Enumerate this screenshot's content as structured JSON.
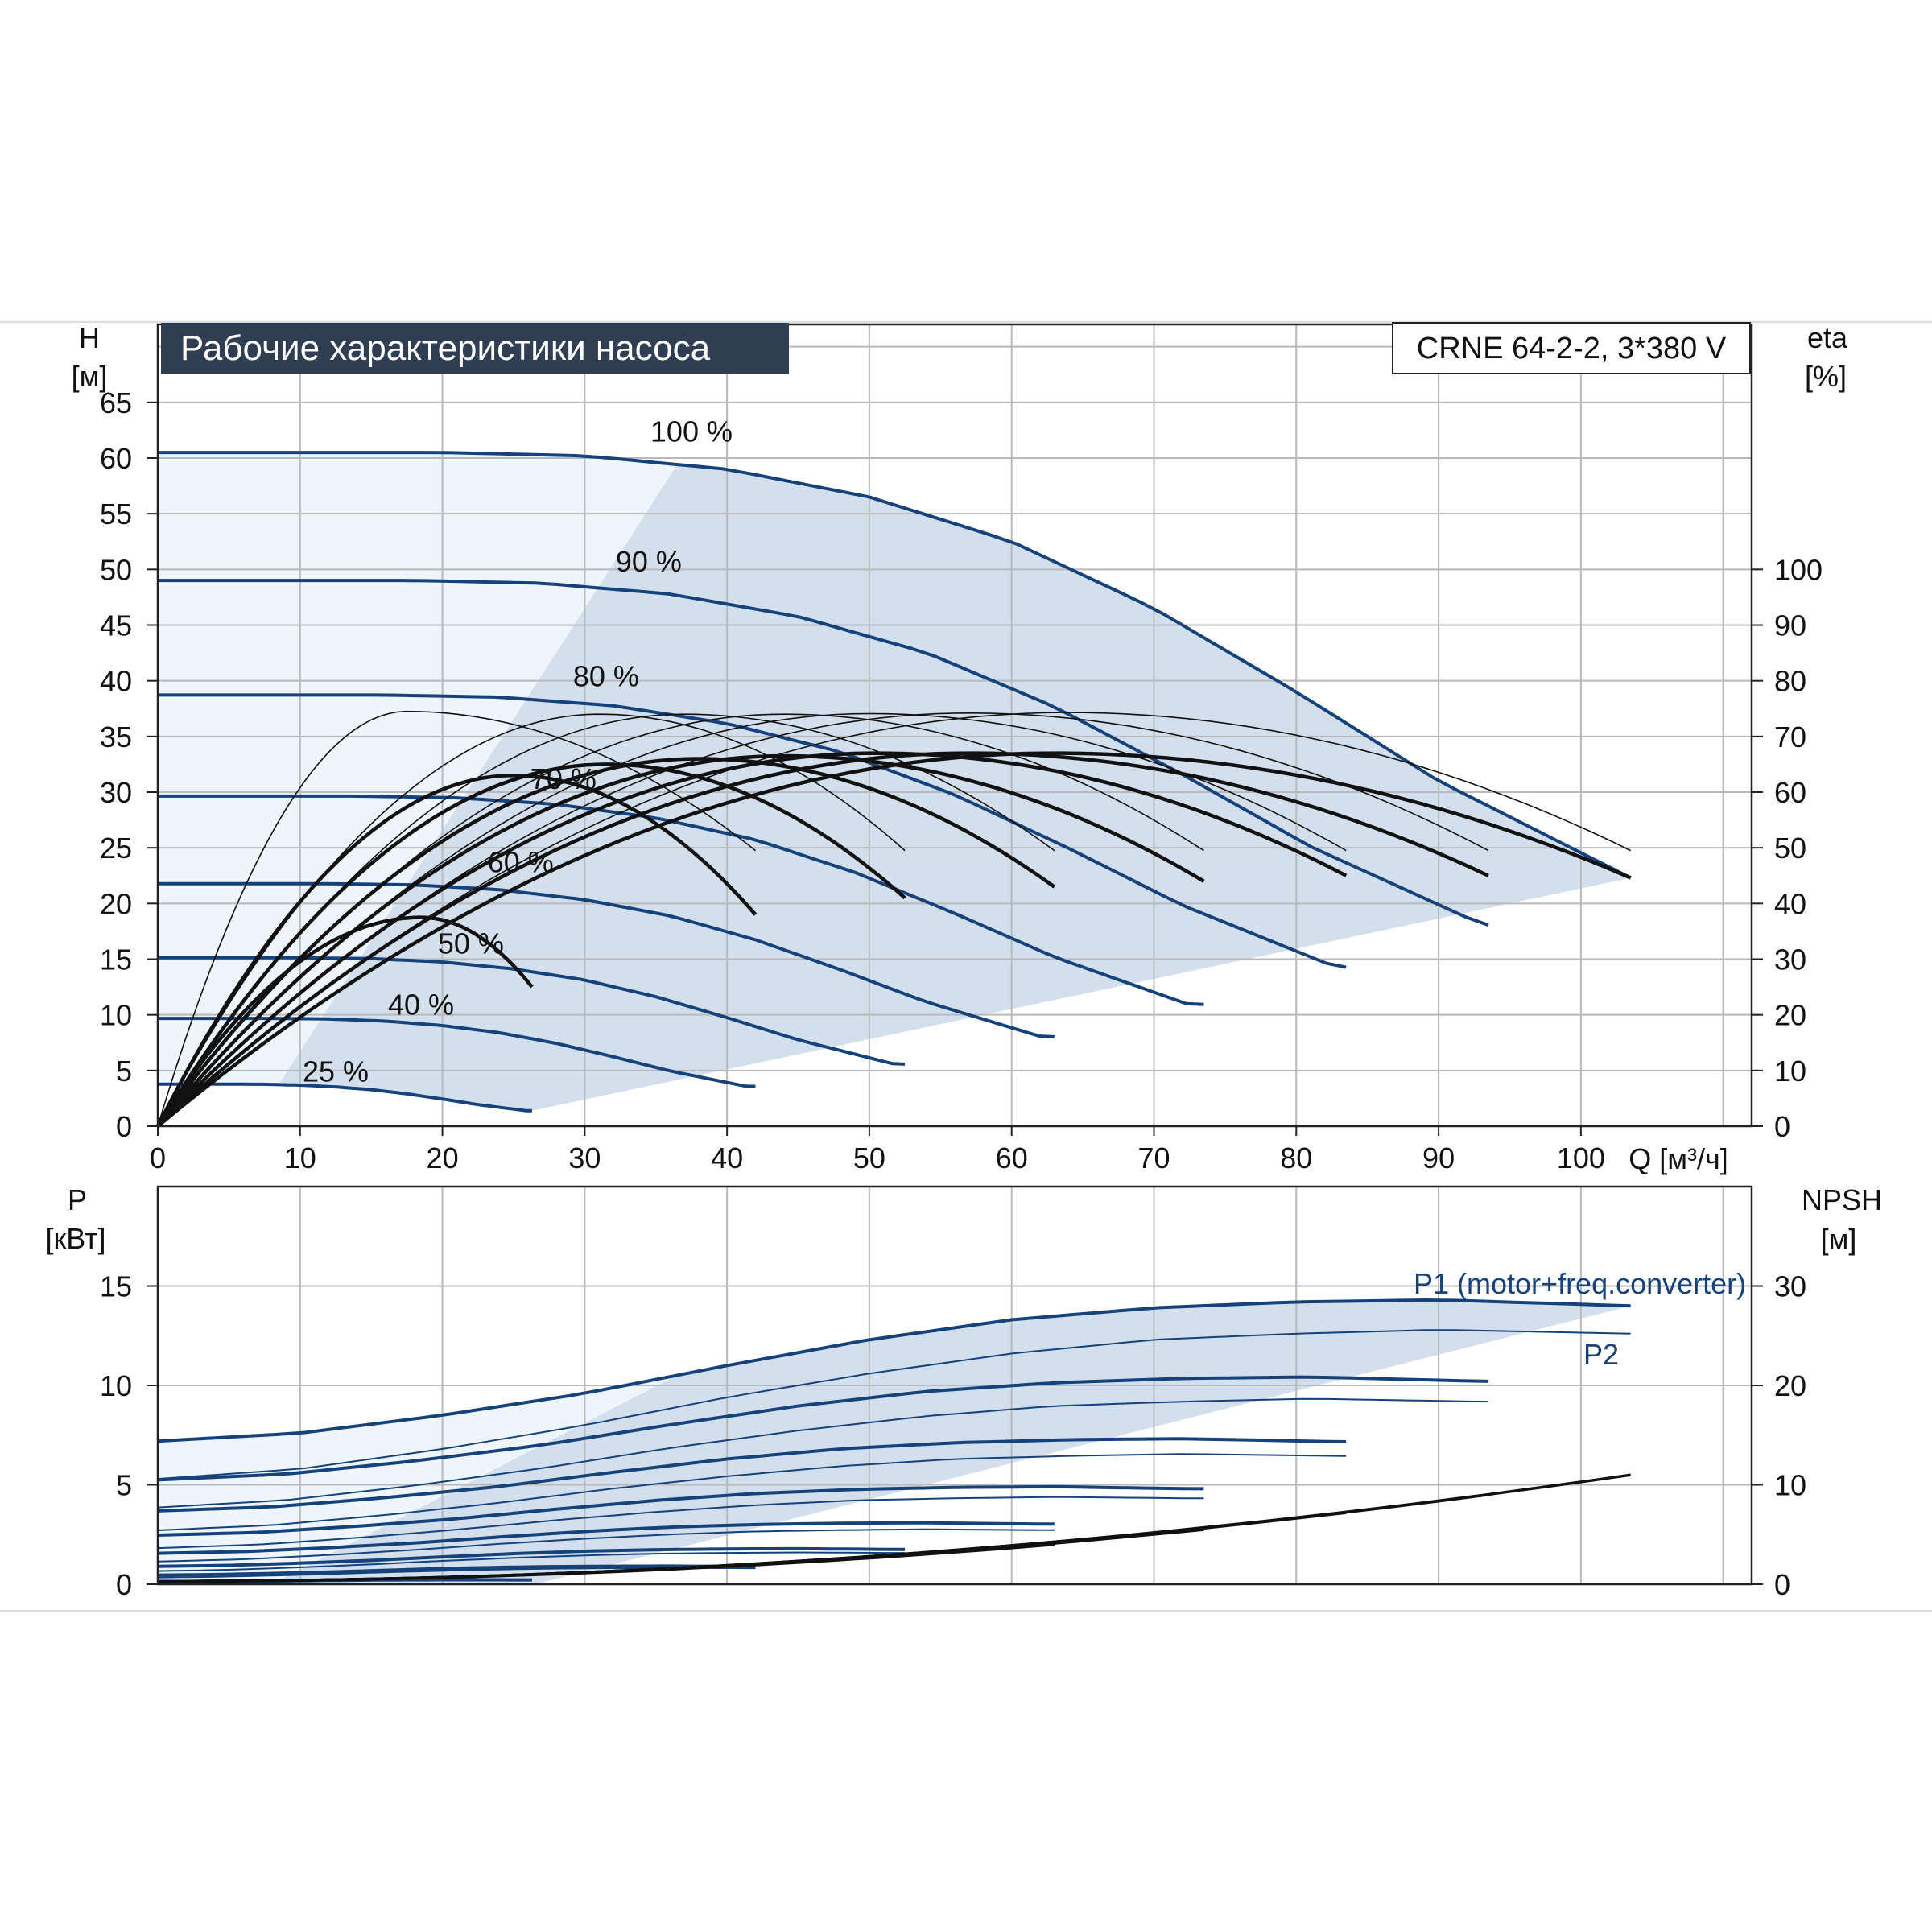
{
  "colors": {
    "accent": "#15427a",
    "title_bg": "#2f3e52",
    "title_text": "#ffffff",
    "shade": "#d3dfec",
    "shade_light": "#eef5fc",
    "grid": "#b9b9b9",
    "eff_curve": "#111111",
    "npsh_curve": "#111111"
  },
  "chart_data": [
    {
      "type": "line",
      "name": "head",
      "title": "Рабочие характеристики насоса",
      "model_label": "CRNE 64-2-2, 3*380 V",
      "xlabel": "Q [м³/ч]",
      "ylabel": "H",
      "ylabel_unit": "[м]",
      "y2label": "eta",
      "y2label_unit": "[%]",
      "xlim": [
        0,
        112
      ],
      "ylim": [
        0,
        72
      ],
      "y2lim": [
        0,
        144
      ],
      "x_ticks": [
        0,
        10,
        20,
        30,
        40,
        50,
        60,
        70,
        80,
        90,
        100
      ],
      "y_ticks": [
        0,
        5,
        10,
        15,
        20,
        25,
        30,
        35,
        40,
        45,
        50,
        55,
        60,
        65
      ],
      "y2_ticks": [
        0,
        10,
        20,
        30,
        40,
        50,
        60,
        70,
        80,
        90,
        100
      ],
      "grid": true,
      "speed_curves": [
        {
          "name": "100 %",
          "speed": 1.0,
          "qmax": 103.5
        },
        {
          "name": "90 %",
          "speed": 0.9,
          "qmax": 93.5
        },
        {
          "name": "80 %",
          "speed": 0.8,
          "qmax": 83.5
        },
        {
          "name": "70 %",
          "speed": 0.7,
          "qmax": 73.5
        },
        {
          "name": "60 %",
          "speed": 0.6,
          "qmax": 63
        },
        {
          "name": "50 %",
          "speed": 0.5,
          "qmax": 52.5
        },
        {
          "name": "40 %",
          "speed": 0.4,
          "qmax": 42
        },
        {
          "name": "25 %",
          "speed": 0.25,
          "qmax": 26.3
        }
      ],
      "head_curve_100": {
        "q": [
          0,
          10,
          20,
          30,
          40,
          50,
          60,
          70,
          80,
          90,
          103.5
        ],
        "h": [
          60.5,
          60.5,
          60.5,
          60.2,
          59.0,
          56.5,
          52.5,
          46.5,
          39.0,
          31.0,
          22.3
        ]
      },
      "efficiency_curves": [
        {
          "qmax": 103.5,
          "peak_q": 63,
          "peak_eta": 67,
          "end_eta": 44.6
        },
        {
          "qmax": 93.5,
          "peak_q": 57,
          "peak_eta": 67,
          "end_eta": 45
        },
        {
          "qmax": 83.5,
          "peak_q": 50.5,
          "peak_eta": 67,
          "end_eta": 45
        },
        {
          "qmax": 73.5,
          "peak_q": 44,
          "peak_eta": 66.5,
          "end_eta": 44
        },
        {
          "qmax": 63,
          "peak_q": 38,
          "peak_eta": 66,
          "end_eta": 43
        },
        {
          "qmax": 52.5,
          "peak_q": 31.5,
          "peak_eta": 65,
          "end_eta": 41
        },
        {
          "qmax": 42,
          "peak_q": 25,
          "peak_eta": 63,
          "end_eta": 38
        },
        {
          "qmax": 26.3,
          "peak_q": 18.5,
          "peak_eta": 37.5,
          "end_eta": 25
        }
      ],
      "efficiency_light_curves": [
        {
          "qmax": 103.5,
          "peak_q": 64,
          "peak_eta": 74.3,
          "end_eta": 49.5
        },
        {
          "qmax": 93.5,
          "peak_q": 57,
          "peak_eta": 74.2,
          "end_eta": 49.5
        },
        {
          "qmax": 83.5,
          "peak_q": 50,
          "peak_eta": 74.1,
          "end_eta": 49.5
        },
        {
          "qmax": 73.5,
          "peak_q": 44,
          "peak_eta": 74.0,
          "end_eta": 49.5
        },
        {
          "qmax": 63,
          "peak_q": 37,
          "peak_eta": 74.0,
          "end_eta": 49.5
        },
        {
          "qmax": 52.5,
          "peak_q": 31,
          "peak_eta": 74.0,
          "end_eta": 49.5
        },
        {
          "qmax": 42,
          "peak_q": 17.5,
          "peak_eta": 74.5,
          "end_eta": 49.5
        }
      ]
    },
    {
      "type": "line",
      "name": "power",
      "ylabel": "P",
      "ylabel_unit": "[кВт]",
      "y2label": "NPSH",
      "y2label_unit": "[м]",
      "xlim": [
        0,
        112
      ],
      "ylim": [
        0,
        20
      ],
      "y2lim": [
        0,
        40
      ],
      "y_ticks": [
        0,
        5,
        10,
        15
      ],
      "y2_ticks": [
        0,
        10,
        20,
        30
      ],
      "grid": true,
      "series_labels": [
        "P1 (motor+freq.converter)",
        "P2"
      ],
      "p1_curve_100": {
        "q": [
          0,
          10,
          20,
          30,
          40,
          50,
          60,
          70,
          80,
          90,
          103.5
        ],
        "p": [
          7.2,
          7.6,
          8.5,
          9.6,
          11.0,
          12.3,
          13.3,
          13.9,
          14.2,
          14.3,
          14.0
        ]
      },
      "p2_curve_100": {
        "q": [
          0,
          10,
          20,
          30,
          40,
          50,
          60,
          70,
          80,
          90,
          103.5
        ],
        "p": [
          5.3,
          5.8,
          6.8,
          8.0,
          9.4,
          10.6,
          11.6,
          12.3,
          12.6,
          12.8,
          12.6
        ]
      },
      "npsh_curves": [
        {
          "qmax": 103.5,
          "npsh_end": 11.0
        },
        {
          "qmax": 93.5,
          "npsh_end": 9.0
        },
        {
          "qmax": 83.5,
          "npsh_end": 7.2
        },
        {
          "qmax": 73.5,
          "npsh_end": 5.5
        },
        {
          "qmax": 63,
          "npsh_end": 4.0
        },
        {
          "qmax": 52.5,
          "npsh_end": 3.0
        }
      ]
    }
  ]
}
